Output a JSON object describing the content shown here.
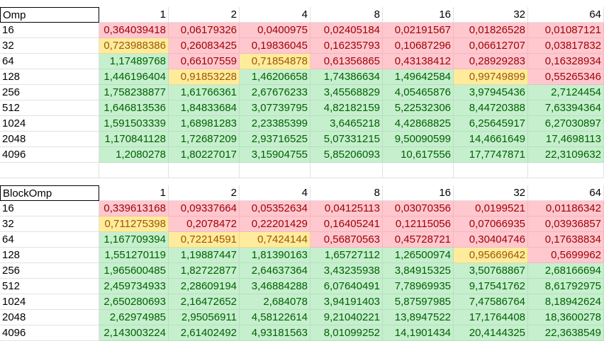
{
  "colors": {
    "red_bg": "#ffc7ce",
    "red_text": "#9c0006",
    "yellow_bg": "#ffeb9c",
    "yellow_text": "#9c5700",
    "green_bg": "#c6efce",
    "green_text": "#006100"
  },
  "tables": [
    {
      "title": "Omp",
      "headers": [
        "1",
        "2",
        "4",
        "8",
        "16",
        "32",
        "64"
      ],
      "rows": [
        {
          "label": "16",
          "values": [
            "0,364039418",
            "0,06179326",
            "0,0400975",
            "0,02405184",
            "0,02191567",
            "0,01826528",
            "0,01087121"
          ],
          "status": [
            "red",
            "red",
            "red",
            "red",
            "red",
            "red",
            "red"
          ]
        },
        {
          "label": "32",
          "values": [
            "0,723988386",
            "0,26083425",
            "0,19836045",
            "0,16235793",
            "0,10687296",
            "0,06612707",
            "0,03817832"
          ],
          "status": [
            "yel",
            "red",
            "red",
            "red",
            "red",
            "red",
            "red"
          ]
        },
        {
          "label": "64",
          "values": [
            "1,17489768",
            "0,66107559",
            "0,71854878",
            "0,61356865",
            "0,43138412",
            "0,28929283",
            "0,16328934"
          ],
          "status": [
            "grn",
            "red",
            "yel",
            "red",
            "red",
            "red",
            "red"
          ]
        },
        {
          "label": "128",
          "values": [
            "1,446196404",
            "0,91853228",
            "1,46206658",
            "1,74386634",
            "1,49642584",
            "0,99749899",
            "0,55265346"
          ],
          "status": [
            "grn",
            "yel",
            "grn",
            "grn",
            "grn",
            "yel",
            "red"
          ]
        },
        {
          "label": "256",
          "values": [
            "1,758238877",
            "1,61766361",
            "2,67676233",
            "3,45568829",
            "4,05465876",
            "3,97945436",
            "2,7124454"
          ],
          "status": [
            "grn",
            "grn",
            "grn",
            "grn",
            "grn",
            "grn",
            "grn"
          ]
        },
        {
          "label": "512",
          "values": [
            "1,646813536",
            "1,84833684",
            "3,07739795",
            "4,82182159",
            "5,22532306",
            "8,44720388",
            "7,63394364"
          ],
          "status": [
            "grn",
            "grn",
            "grn",
            "grn",
            "grn",
            "grn",
            "grn"
          ]
        },
        {
          "label": "1024",
          "values": [
            "1,591503339",
            "1,68981283",
            "2,23385399",
            "3,6465218",
            "4,42868825",
            "6,25645917",
            "6,27030897"
          ],
          "status": [
            "grn",
            "grn",
            "grn",
            "grn",
            "grn",
            "grn",
            "grn"
          ]
        },
        {
          "label": "2048",
          "values": [
            "1,170841128",
            "1,72687209",
            "2,93716525",
            "5,07331215",
            "9,50090599",
            "14,4661649",
            "17,4698113"
          ],
          "status": [
            "grn",
            "grn",
            "grn",
            "grn",
            "grn",
            "grn",
            "grn"
          ]
        },
        {
          "label": "4096",
          "values": [
            "1,2080278",
            "1,80227017",
            "3,15904755",
            "5,85206093",
            "10,617556",
            "17,7747871",
            "22,3109632"
          ],
          "status": [
            "grn",
            "grn",
            "grn",
            "grn",
            "grn",
            "grn",
            "grn"
          ]
        }
      ]
    },
    {
      "title": "BlockOmp",
      "headers": [
        "1",
        "2",
        "4",
        "8",
        "16",
        "32",
        "64"
      ],
      "rows": [
        {
          "label": "16",
          "values": [
            "0,339613168",
            "0,09337664",
            "0,05352634",
            "0,04125113",
            "0,03070356",
            "0,0199521",
            "0,01186342"
          ],
          "status": [
            "red",
            "red",
            "red",
            "red",
            "red",
            "red",
            "red"
          ]
        },
        {
          "label": "32",
          "values": [
            "0,711275398",
            "0,2078472",
            "0,22201429",
            "0,16405241",
            "0,12115056",
            "0,07066935",
            "0,03936857"
          ],
          "status": [
            "yel",
            "red",
            "red",
            "red",
            "red",
            "red",
            "red"
          ]
        },
        {
          "label": "64",
          "values": [
            "1,167709394",
            "0,72214591",
            "0,7424144",
            "0,56870563",
            "0,45728721",
            "0,30404746",
            "0,17638834"
          ],
          "status": [
            "grn",
            "yel",
            "yel",
            "red",
            "red",
            "red",
            "red"
          ]
        },
        {
          "label": "128",
          "values": [
            "1,551270119",
            "1,19887447",
            "1,81390163",
            "1,65727112",
            "1,26500974",
            "0,95669642",
            "0,5699962"
          ],
          "status": [
            "grn",
            "grn",
            "grn",
            "grn",
            "grn",
            "yel",
            "red"
          ]
        },
        {
          "label": "256",
          "values": [
            "1,965600485",
            "1,82722877",
            "2,64637364",
            "3,43235938",
            "3,84915325",
            "3,50768867",
            "2,68166694"
          ],
          "status": [
            "grn",
            "grn",
            "grn",
            "grn",
            "grn",
            "grn",
            "grn"
          ]
        },
        {
          "label": "512",
          "values": [
            "2,459734933",
            "2,28609194",
            "3,46884288",
            "6,07640491",
            "7,78969935",
            "9,17541762",
            "8,61792975"
          ],
          "status": [
            "grn",
            "grn",
            "grn",
            "grn",
            "grn",
            "grn",
            "grn"
          ]
        },
        {
          "label": "1024",
          "values": [
            "2,650280693",
            "2,16472652",
            "2,684078",
            "3,94191403",
            "5,87597985",
            "7,47586764",
            "8,18942624"
          ],
          "status": [
            "grn",
            "grn",
            "grn",
            "grn",
            "grn",
            "grn",
            "grn"
          ]
        },
        {
          "label": "2048",
          "values": [
            "2,62974985",
            "2,95056911",
            "4,58122614",
            "9,21040221",
            "13,8947522",
            "17,1764408",
            "18,3600278"
          ],
          "status": [
            "grn",
            "grn",
            "grn",
            "grn",
            "grn",
            "grn",
            "grn"
          ]
        },
        {
          "label": "4096",
          "values": [
            "2,143003224",
            "2,61402492",
            "4,93181563",
            "8,01099252",
            "14,1901434",
            "20,4144325",
            "22,3638549"
          ],
          "status": [
            "grn",
            "grn",
            "grn",
            "grn",
            "grn",
            "grn",
            "grn"
          ]
        }
      ]
    }
  ]
}
